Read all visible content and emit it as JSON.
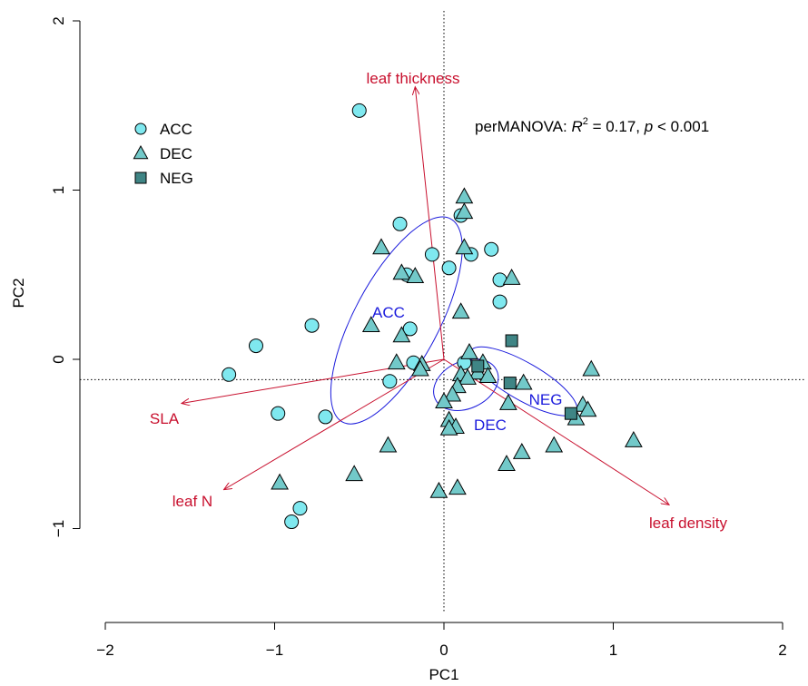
{
  "chart_data": {
    "type": "scatter",
    "title": "",
    "xlabel": "PC1",
    "ylabel": "PC2",
    "xlim": [
      -2,
      2
    ],
    "ylim": [
      -1,
      2
    ],
    "xticks": [
      -2,
      -1,
      0,
      1,
      2
    ],
    "yticks": [
      -1,
      0,
      1,
      2
    ],
    "xtick_labels": [
      "−2",
      "−1",
      "0",
      "1",
      "2"
    ],
    "ytick_labels": [
      "−1",
      "0",
      "1",
      "2"
    ],
    "reference_lines": {
      "x": 0,
      "y": -0.12,
      "style": "dotted"
    },
    "annotation": {
      "prefix": "perMANOVA: ",
      "r": "R",
      "sup": "2",
      "mid": " = 0.17, ",
      "p": "p",
      "suffix": " < 0.001"
    },
    "legend": {
      "position": "top-left",
      "entries": [
        {
          "label": "ACC",
          "marker": "circle",
          "color": "#7fe8ef"
        },
        {
          "label": "DEC",
          "marker": "triangle",
          "color": "#72c9c9"
        },
        {
          "label": "NEG",
          "marker": "square",
          "color": "#3f8585"
        }
      ]
    },
    "colors": {
      "ACC": "#7fe8ef",
      "DEC": "#72c9c9",
      "NEG": "#3f8585",
      "vectors": "#c8102e",
      "ellipses": "#1a1adc"
    },
    "series": [
      {
        "name": "ACC",
        "marker": "circle",
        "points": [
          [
            -0.5,
            1.47
          ],
          [
            -0.26,
            0.8
          ],
          [
            0.1,
            0.85
          ],
          [
            0.28,
            0.65
          ],
          [
            -0.07,
            0.62
          ],
          [
            0.16,
            0.62
          ],
          [
            0.03,
            0.54
          ],
          [
            -0.22,
            0.5
          ],
          [
            0.33,
            0.47
          ],
          [
            0.33,
            0.34
          ],
          [
            -0.78,
            0.2
          ],
          [
            -0.2,
            0.18
          ],
          [
            -1.11,
            0.08
          ],
          [
            -1.27,
            -0.09
          ],
          [
            -0.32,
            -0.13
          ],
          [
            -0.18,
            -0.02
          ],
          [
            0.12,
            -0.02
          ],
          [
            -0.98,
            -0.32
          ],
          [
            -0.7,
            -0.34
          ],
          [
            -0.85,
            -0.88
          ],
          [
            -0.9,
            -0.96
          ]
        ]
      },
      {
        "name": "DEC",
        "marker": "triangle",
        "points": [
          [
            0.12,
            0.96
          ],
          [
            0.12,
            0.87
          ],
          [
            -0.37,
            0.66
          ],
          [
            0.12,
            0.66
          ],
          [
            -0.25,
            0.51
          ],
          [
            -0.17,
            0.49
          ],
          [
            0.4,
            0.48
          ],
          [
            0.1,
            0.28
          ],
          [
            -0.43,
            0.2
          ],
          [
            -0.25,
            0.14
          ],
          [
            0.15,
            0.04
          ],
          [
            -0.28,
            -0.02
          ],
          [
            -0.13,
            -0.03
          ],
          [
            0.23,
            -0.02
          ],
          [
            -0.14,
            -0.06
          ],
          [
            0.1,
            -0.09
          ],
          [
            0.2,
            -0.08
          ],
          [
            0.26,
            -0.1
          ],
          [
            0.14,
            -0.11
          ],
          [
            0.08,
            -0.16
          ],
          [
            0.05,
            -0.21
          ],
          [
            0.0,
            -0.25
          ],
          [
            0.38,
            -0.26
          ],
          [
            0.47,
            -0.14
          ],
          [
            0.87,
            -0.06
          ],
          [
            0.82,
            -0.27
          ],
          [
            0.85,
            -0.3
          ],
          [
            0.78,
            -0.35
          ],
          [
            0.03,
            -0.36
          ],
          [
            0.07,
            -0.4
          ],
          [
            0.03,
            -0.41
          ],
          [
            0.65,
            -0.51
          ],
          [
            0.46,
            -0.55
          ],
          [
            0.37,
            -0.62
          ],
          [
            1.12,
            -0.48
          ],
          [
            -0.33,
            -0.51
          ],
          [
            -0.53,
            -0.68
          ],
          [
            -0.97,
            -0.73
          ],
          [
            0.08,
            -0.76
          ],
          [
            -0.03,
            -0.78
          ]
        ]
      },
      {
        "name": "NEG",
        "marker": "square",
        "points": [
          [
            0.4,
            0.11
          ],
          [
            0.2,
            -0.04
          ],
          [
            0.39,
            -0.14
          ],
          [
            0.75,
            -0.32
          ]
        ]
      }
    ],
    "vectors": [
      {
        "label": "leaf thickness",
        "x": -0.17,
        "y": 1.61
      },
      {
        "label": "SLA",
        "x": -1.55,
        "y": -0.26
      },
      {
        "label": "leaf N",
        "x": -1.3,
        "y": -0.77
      },
      {
        "label": "leaf density",
        "x": 1.33,
        "y": -0.86
      }
    ],
    "ellipses": [
      {
        "label": "ACC",
        "cx": -0.28,
        "cy": 0.23,
        "rx": 0.68,
        "ry": 0.25,
        "angle_deg": 62
      },
      {
        "label": "DEC",
        "cx": 0.13,
        "cy": -0.15,
        "rx": 0.2,
        "ry": 0.14,
        "angle_deg": 25
      },
      {
        "label": "NEG",
        "cx": 0.47,
        "cy": -0.13,
        "rx": 0.36,
        "ry": 0.11,
        "angle_deg": -30
      }
    ]
  }
}
